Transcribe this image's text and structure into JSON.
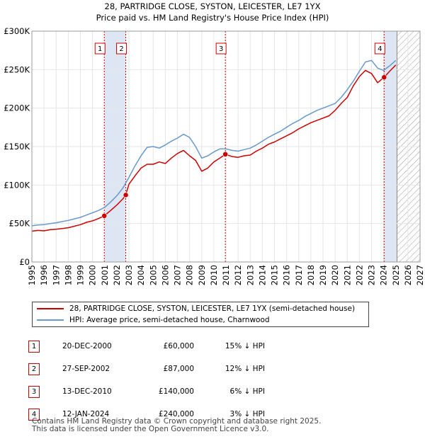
{
  "title_line1": "28, PARTRIDGE CLOSE, SYSTON, LEICESTER, LE7 1YX",
  "title_line2": "Price paid vs. HM Land Registry's House Price Index (HPI)",
  "colors": {
    "price": "#cc0000",
    "hpi": "#6699cc",
    "highlight": "#dde6f5",
    "marker": "#cc0000"
  },
  "chart_data": {
    "type": "line",
    "title": "28, PARTRIDGE CLOSE, SYSTON, LEICESTER, LE7 1YX — Price paid vs. HM Land Registry's House Price Index (HPI)",
    "xlabel": "",
    "ylabel": "",
    "xlim": [
      1995,
      2027
    ],
    "ylim": [
      0,
      300000
    ],
    "x_ticks": [
      1995,
      1996,
      1997,
      1998,
      1999,
      2000,
      2001,
      2002,
      2003,
      2004,
      2005,
      2006,
      2007,
      2008,
      2009,
      2010,
      2011,
      2012,
      2013,
      2014,
      2015,
      2016,
      2017,
      2018,
      2019,
      2020,
      2021,
      2022,
      2023,
      2024,
      2025,
      2026,
      2027
    ],
    "y_ticks": [
      {
        "value": 0,
        "label": "£0"
      },
      {
        "value": 50000,
        "label": "£50K"
      },
      {
        "value": 100000,
        "label": "£100K"
      },
      {
        "value": 150000,
        "label": "£150K"
      },
      {
        "value": 200000,
        "label": "£200K"
      },
      {
        "value": 250000,
        "label": "£250K"
      },
      {
        "value": 300000,
        "label": "£300K"
      }
    ],
    "highlight_ranges": [
      [
        2000.97,
        2002.74
      ],
      [
        2024.04,
        2025.1
      ]
    ],
    "forecast_start": 2025.1,
    "series": [
      {
        "name": "28, PARTRIDGE CLOSE, SYSTON, LEICESTER, LE7 1YX (semi-detached house)",
        "color": "#cc0000",
        "x": [
          1995,
          1995.5,
          1996,
          1996.5,
          1997,
          1997.5,
          1998,
          1998.5,
          1999,
          1999.5,
          2000,
          2000.5,
          2000.97,
          2001.5,
          2002,
          2002.5,
          2002.74,
          2003,
          2003.5,
          2004,
          2004.5,
          2005,
          2005.5,
          2006,
          2006.5,
          2007,
          2007.5,
          2008,
          2008.5,
          2009,
          2009.5,
          2010,
          2010.5,
          2010.95,
          2011.5,
          2012,
          2012.5,
          2013,
          2013.5,
          2014,
          2014.5,
          2015,
          2015.5,
          2016,
          2016.5,
          2017,
          2017.5,
          2018,
          2018.5,
          2019,
          2019.5,
          2020,
          2020.5,
          2021,
          2021.5,
          2022,
          2022.5,
          2023,
          2023.5,
          2024.04,
          2024.5,
          2025
        ],
        "y": [
          40000,
          41000,
          40500,
          42000,
          42500,
          43500,
          44500,
          46500,
          48500,
          51500,
          53500,
          56500,
          60000,
          67000,
          74000,
          82000,
          87000,
          101000,
          112000,
          122000,
          127000,
          127000,
          130000,
          128000,
          135000,
          141000,
          145000,
          138000,
          132000,
          118000,
          122000,
          130000,
          135000,
          140000,
          137000,
          136000,
          138000,
          139000,
          144000,
          148000,
          153000,
          156000,
          160000,
          164000,
          168000,
          173000,
          177000,
          181000,
          184000,
          187000,
          190000,
          197000,
          206000,
          214000,
          229000,
          241000,
          249000,
          245000,
          233000,
          240000,
          248000,
          256000
        ]
      },
      {
        "name": "HPI: Average price, semi-detached house, Charnwood",
        "color": "#6699cc",
        "x": [
          1995,
          1995.5,
          1996,
          1996.5,
          1997,
          1997.5,
          1998,
          1998.5,
          1999,
          1999.5,
          2000,
          2000.5,
          2001,
          2001.5,
          2002,
          2002.5,
          2003,
          2003.5,
          2004,
          2004.5,
          2005,
          2005.5,
          2006,
          2006.5,
          2007,
          2007.5,
          2008,
          2008.5,
          2009,
          2009.5,
          2010,
          2010.5,
          2011,
          2011.5,
          2012,
          2012.5,
          2013,
          2013.5,
          2014,
          2014.5,
          2015,
          2015.5,
          2016,
          2016.5,
          2017,
          2017.5,
          2018,
          2018.5,
          2019,
          2019.5,
          2020,
          2020.5,
          2021,
          2021.5,
          2022,
          2022.5,
          2023,
          2023.5,
          2024,
          2024.5,
          2025
        ],
        "y": [
          47000,
          48000,
          48500,
          50000,
          51000,
          52500,
          54000,
          56000,
          58000,
          61000,
          64000,
          67000,
          71000,
          78000,
          86000,
          96000,
          110000,
          125000,
          138000,
          149000,
          150000,
          148000,
          152000,
          157000,
          161000,
          166000,
          162000,
          150000,
          135000,
          138000,
          143000,
          147000,
          147000,
          145000,
          144000,
          146000,
          148000,
          152000,
          157000,
          162000,
          166000,
          170000,
          175000,
          180000,
          184000,
          189000,
          193000,
          197000,
          200000,
          203000,
          206000,
          214000,
          224000,
          235000,
          248000,
          260000,
          262000,
          252000,
          249000,
          255000,
          262000
        ]
      }
    ],
    "sales": [
      {
        "label": "1",
        "x": 2000.97,
        "y": 60000
      },
      {
        "label": "2",
        "x": 2002.74,
        "y": 87000
      },
      {
        "label": "3",
        "x": 2010.95,
        "y": 140000
      },
      {
        "label": "4",
        "x": 2024.04,
        "y": 240000
      }
    ]
  },
  "legend": {
    "price_label": "28, PARTRIDGE CLOSE, SYSTON, LEICESTER, LE7 1YX (semi-detached house)",
    "hpi_label": "HPI: Average price, semi-detached house, Charnwood"
  },
  "transactions": [
    {
      "num": "1",
      "date": "20-DEC-2000",
      "price": "£60,000",
      "diff": "15% ↓ HPI"
    },
    {
      "num": "2",
      "date": "27-SEP-2002",
      "price": "£87,000",
      "diff": "12% ↓ HPI"
    },
    {
      "num": "3",
      "date": "13-DEC-2010",
      "price": "£140,000",
      "diff": "6% ↓ HPI"
    },
    {
      "num": "4",
      "date": "12-JAN-2024",
      "price": "£240,000",
      "diff": "3% ↓ HPI"
    }
  ],
  "footer": {
    "line1": "Contains HM Land Registry data © Crown copyright and database right 2025.",
    "line2": "This data is licensed under the Open Government Licence v3.0."
  }
}
